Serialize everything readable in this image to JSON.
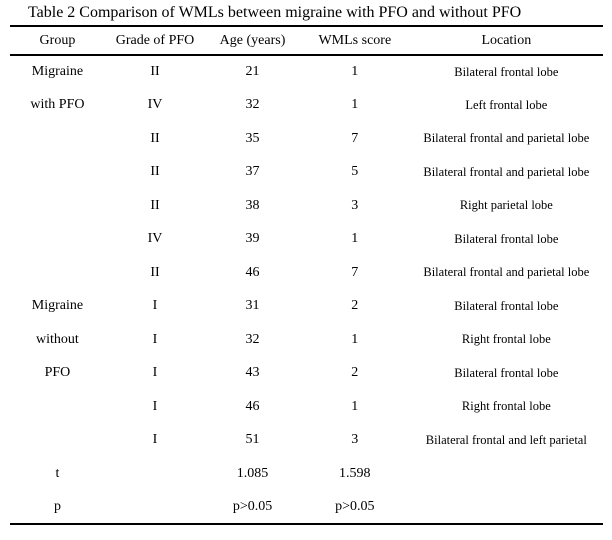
{
  "document": {
    "title": "Table 2 Comparison of WMLs between migraine with PFO and without PFO"
  },
  "table": {
    "columns": [
      "Group",
      "Grade of PFO",
      "Age (years)",
      "WMLs score",
      "Location"
    ],
    "rows": [
      [
        "Migraine",
        "II",
        "21",
        "1",
        "Bilateral frontal lobe"
      ],
      [
        "with PFO",
        "IV",
        "32",
        "1",
        "Left frontal lobe"
      ],
      [
        "",
        "II",
        "35",
        "7",
        "Bilateral frontal and parietal lobe"
      ],
      [
        "",
        "II",
        "37",
        "5",
        "Bilateral frontal and parietal lobe"
      ],
      [
        "",
        "II",
        "38",
        "3",
        "Right parietal lobe"
      ],
      [
        "",
        "IV",
        "39",
        "1",
        "Bilateral frontal lobe"
      ],
      [
        "",
        "II",
        "46",
        "7",
        "Bilateral frontal and parietal lobe"
      ],
      [
        "Migraine",
        "I",
        "31",
        "2",
        "Bilateral frontal lobe"
      ],
      [
        "without",
        "I",
        "32",
        "1",
        "Right frontal lobe"
      ],
      [
        "PFO",
        "I",
        "43",
        "2",
        "Bilateral frontal lobe"
      ],
      [
        "",
        "I",
        "46",
        "1",
        "Right frontal lobe"
      ],
      [
        "",
        "I",
        "51",
        "3",
        "Bilateral frontal and left parietal"
      ],
      [
        "t",
        "",
        "1.085",
        "1.598",
        ""
      ],
      [
        "p",
        "",
        "p>0.05",
        "p>0.05",
        ""
      ]
    ],
    "text_color": "#000000",
    "rule_color": "#000000",
    "background_color": "#ffffff"
  }
}
